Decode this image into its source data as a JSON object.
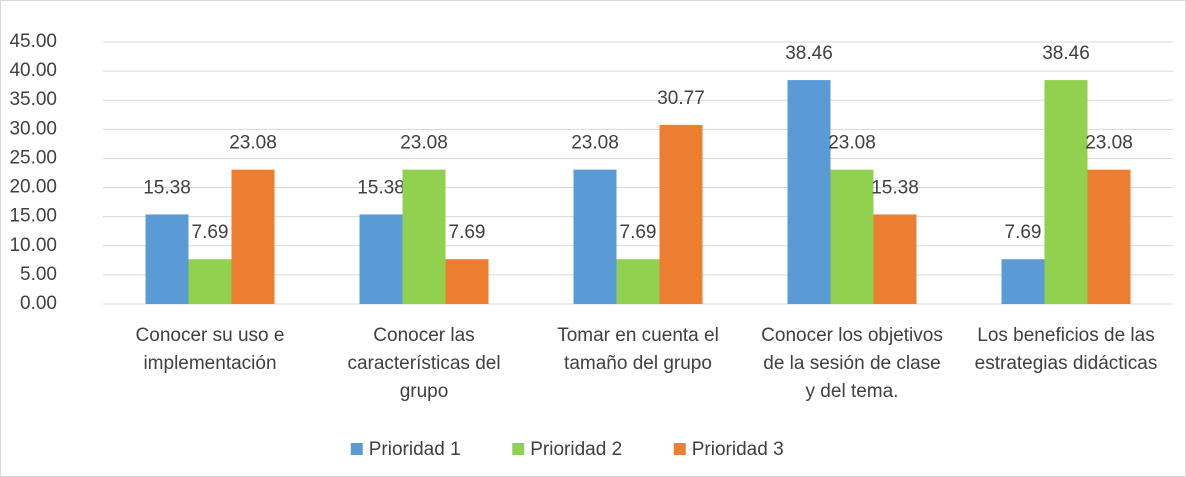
{
  "chart_data": {
    "type": "bar",
    "categories": [
      [
        "Conocer su uso e",
        "implementación"
      ],
      [
        "Conocer las",
        "características del",
        "grupo"
      ],
      [
        "Tomar en cuenta el",
        "tamaño del grupo"
      ],
      [
        "Conocer los objetivos",
        "de la sesión de clase",
        "y del tema."
      ],
      [
        "Los beneficios de las",
        "estrategias didácticas"
      ]
    ],
    "series": [
      {
        "name": "Prioridad 1",
        "color": "#5b9bd5",
        "values": [
          15.38,
          15.38,
          23.08,
          38.46,
          7.69
        ]
      },
      {
        "name": "Prioridad 2",
        "color": "#92d050",
        "values": [
          7.69,
          23.08,
          7.69,
          23.08,
          38.46
        ]
      },
      {
        "name": "Prioridad 3",
        "color": "#ed7d31",
        "values": [
          23.08,
          7.69,
          30.77,
          15.38,
          23.08
        ]
      }
    ],
    "ylim": [
      0,
      45
    ],
    "yticks": [
      {
        "value": 0,
        "label": "0.00"
      },
      {
        "value": 5,
        "label": "5.00"
      },
      {
        "value": 10,
        "label": "10.00"
      },
      {
        "value": 15,
        "label": "15.00"
      },
      {
        "value": 20,
        "label": "20.00"
      },
      {
        "value": 25,
        "label": "25.00"
      },
      {
        "value": 30,
        "label": "30.00"
      },
      {
        "value": 35,
        "label": "35.00"
      },
      {
        "value": 40,
        "label": "40.00"
      },
      {
        "value": 45,
        "label": "45.00"
      }
    ],
    "grid": true,
    "legend": "bottom"
  }
}
